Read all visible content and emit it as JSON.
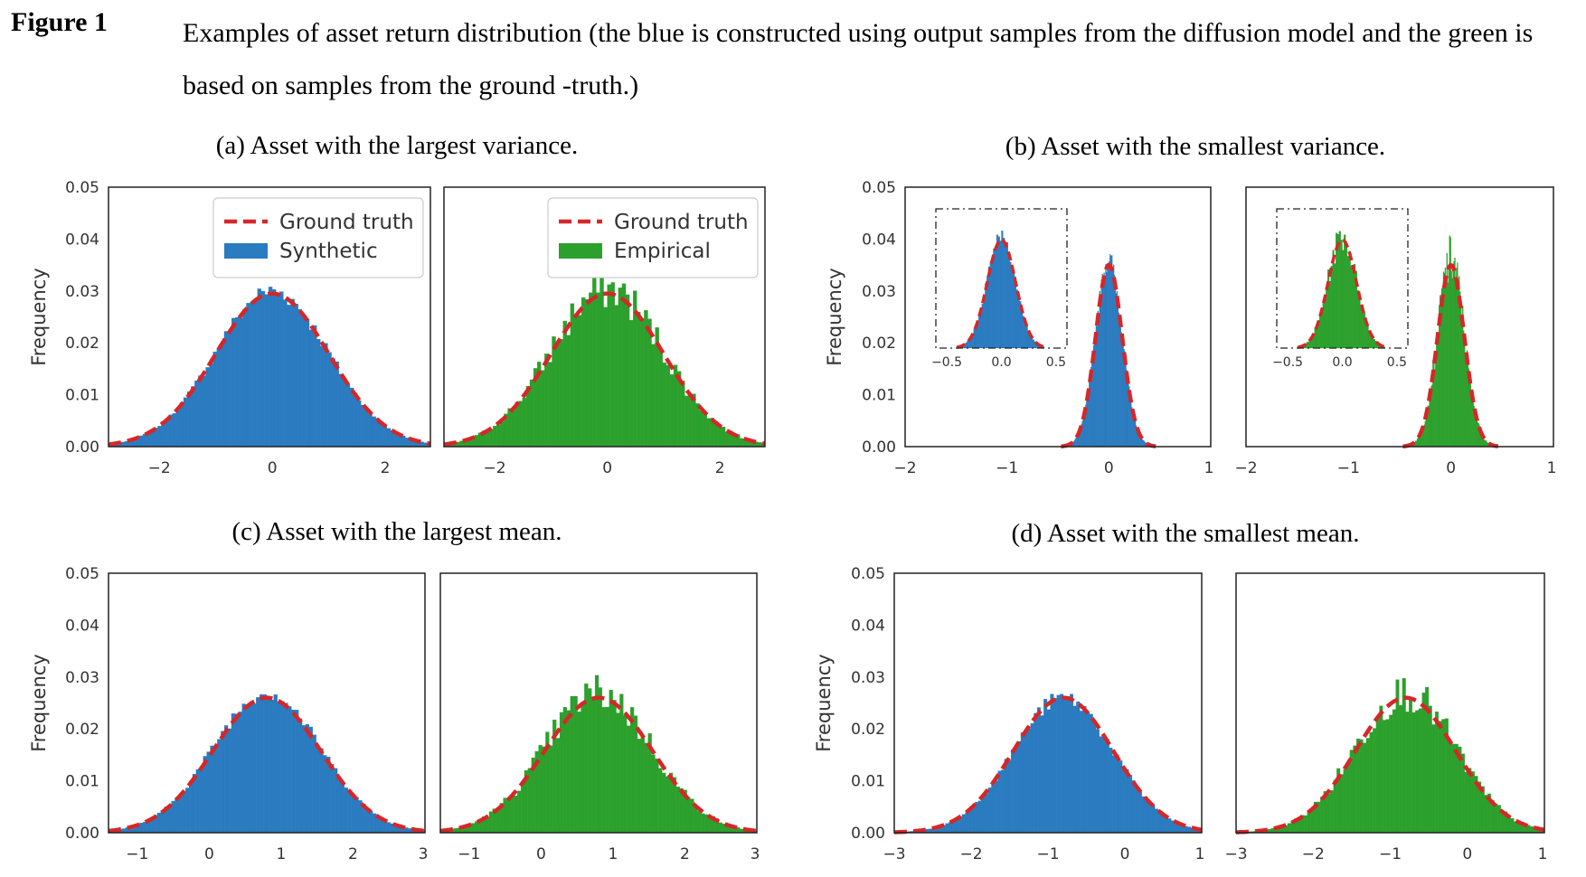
{
  "caption": {
    "label": "Figure 1",
    "text": "Examples of asset return distribution (the blue is constructed using output samples from the diffusion model and the green is based on samples from the ground -truth.)"
  },
  "colors": {
    "synthetic": "#2a7bbf",
    "empirical": "#2ca02c",
    "ground_truth": "#d62728"
  },
  "chart_data": [
    {
      "type": "bar",
      "title": "(a)  Asset with the largest variance.",
      "ylabel": "Frequency",
      "xlim": [
        -2.9,
        2.8
      ],
      "ylim": [
        0,
        0.05
      ],
      "xticks": [
        -2,
        0,
        2
      ],
      "xtick_labels": [
        "−2",
        "0",
        "2"
      ],
      "yticks": [
        0,
        0.01,
        0.02,
        0.03,
        0.04,
        0.05
      ],
      "ytick_labels": [
        "0.00",
        "0.01",
        "0.02",
        "0.03",
        "0.04",
        "0.05"
      ],
      "series": [
        {
          "name": "Ground truth",
          "kind": "line",
          "mean": 0.0,
          "std": 1.0,
          "peak": 0.0295
        },
        {
          "name": "Synthetic",
          "kind": "histogram",
          "mean": 0.0,
          "std": 1.0,
          "peak": 0.03
        }
      ],
      "legend": "top-right"
    },
    {
      "type": "bar",
      "title": "",
      "ylabel": "",
      "xlim": [
        -2.9,
        2.8
      ],
      "ylim": [
        0,
        0.05
      ],
      "xticks": [
        -2,
        0,
        2
      ],
      "xtick_labels": [
        "−2",
        "0",
        "2"
      ],
      "yticks": [],
      "ytick_labels": [],
      "series": [
        {
          "name": "Ground truth",
          "kind": "line",
          "mean": 0.0,
          "std": 1.0,
          "peak": 0.0295
        },
        {
          "name": "Empirical",
          "kind": "histogram",
          "mean": 0.0,
          "std": 1.0,
          "peak": 0.0305
        }
      ],
      "legend": "top-right"
    },
    {
      "type": "bar",
      "title": "(b)  Asset with the smallest variance.",
      "ylabel": "Frequency",
      "xlim": [
        -2,
        1
      ],
      "ylim": [
        0,
        0.05
      ],
      "xticks": [
        -2,
        -1,
        0,
        1
      ],
      "xtick_labels": [
        "−2",
        "−1",
        "0",
        "1"
      ],
      "yticks": [
        0,
        0.01,
        0.02,
        0.03,
        0.04,
        0.05
      ],
      "ytick_labels": [
        "0.00",
        "0.01",
        "0.02",
        "0.03",
        "0.04",
        "0.05"
      ],
      "series": [
        {
          "name": "Ground truth",
          "kind": "line",
          "mean": 0.0,
          "std": 0.13,
          "peak": 0.035
        },
        {
          "name": "Synthetic",
          "kind": "histogram",
          "mean": 0.0,
          "std": 0.13,
          "peak": 0.036
        }
      ],
      "inset": {
        "xlim": [
          -0.6,
          0.6
        ],
        "xticks": [
          -0.5,
          0.0,
          0.5
        ],
        "xtick_labels": [
          "−0.5",
          "0.0",
          "0.5"
        ]
      }
    },
    {
      "type": "bar",
      "title": "",
      "ylabel": "",
      "xlim": [
        -2,
        1
      ],
      "ylim": [
        0,
        0.05
      ],
      "xticks": [
        -2,
        -1,
        0,
        1
      ],
      "xtick_labels": [
        "−2",
        "−1",
        "0",
        "1"
      ],
      "yticks": [],
      "ytick_labels": [],
      "series": [
        {
          "name": "Ground truth",
          "kind": "line",
          "mean": 0.0,
          "std": 0.13,
          "peak": 0.035
        },
        {
          "name": "Empirical",
          "kind": "histogram",
          "mean": 0.0,
          "std": 0.13,
          "peak": 0.036
        }
      ],
      "inset": {
        "xlim": [
          -0.6,
          0.6
        ],
        "xticks": [
          -0.5,
          0.0,
          0.5
        ],
        "xtick_labels": [
          "−0.5",
          "0.0",
          "0.5"
        ]
      }
    },
    {
      "type": "bar",
      "title": "(c)  Asset with the largest mean.",
      "ylabel": "Frequency",
      "xlim": [
        -1.4,
        3.0
      ],
      "ylim": [
        0,
        0.05
      ],
      "xticks": [
        -1,
        0,
        1,
        2,
        3
      ],
      "xtick_labels": [
        "−1",
        "0",
        "1",
        "2",
        "3"
      ],
      "yticks": [
        0,
        0.01,
        0.02,
        0.03,
        0.04,
        0.05
      ],
      "ytick_labels": [
        "0.00",
        "0.01",
        "0.02",
        "0.03",
        "0.04",
        "0.05"
      ],
      "series": [
        {
          "name": "Ground truth",
          "kind": "line",
          "mean": 0.8,
          "std": 0.75,
          "peak": 0.026
        },
        {
          "name": "Synthetic",
          "kind": "histogram",
          "mean": 0.8,
          "std": 0.75,
          "peak": 0.027
        }
      ]
    },
    {
      "type": "bar",
      "title": "",
      "ylabel": "",
      "xlim": [
        -1.4,
        3.0
      ],
      "ylim": [
        0,
        0.05
      ],
      "xticks": [
        -1,
        0,
        1,
        2,
        3
      ],
      "xtick_labels": [
        "−1",
        "0",
        "1",
        "2",
        "3"
      ],
      "yticks": [],
      "ytick_labels": [],
      "series": [
        {
          "name": "Ground truth",
          "kind": "line",
          "mean": 0.8,
          "std": 0.75,
          "peak": 0.026
        },
        {
          "name": "Empirical",
          "kind": "histogram",
          "mean": 0.8,
          "std": 0.75,
          "peak": 0.027
        }
      ]
    },
    {
      "type": "bar",
      "title": "(d)  Asset with the smallest mean.",
      "ylabel": "Frequency",
      "xlim": [
        -3,
        1
      ],
      "ylim": [
        0,
        0.05
      ],
      "xticks": [
        -3,
        -2,
        -1,
        0,
        1
      ],
      "xtick_labels": [
        "−3",
        "−2",
        "−1",
        "0",
        "1"
      ],
      "yticks": [
        0,
        0.01,
        0.02,
        0.03,
        0.04,
        0.05
      ],
      "ytick_labels": [
        "0.00",
        "0.01",
        "0.02",
        "0.03",
        "0.04",
        "0.05"
      ],
      "series": [
        {
          "name": "Ground truth",
          "kind": "line",
          "mean": -0.8,
          "std": 0.65,
          "peak": 0.026
        },
        {
          "name": "Synthetic",
          "kind": "histogram",
          "mean": -0.8,
          "std": 0.65,
          "peak": 0.026
        }
      ]
    },
    {
      "type": "bar",
      "title": "",
      "ylabel": "",
      "xlim": [
        -3,
        1
      ],
      "ylim": [
        0,
        0.05
      ],
      "xticks": [
        -3,
        -2,
        -1,
        0,
        1
      ],
      "xtick_labels": [
        "−3",
        "−2",
        "−1",
        "0",
        "1"
      ],
      "yticks": [],
      "ytick_labels": [],
      "series": [
        {
          "name": "Ground truth",
          "kind": "line",
          "mean": -0.8,
          "std": 0.65,
          "peak": 0.026
        },
        {
          "name": "Empirical",
          "kind": "histogram",
          "mean": -0.8,
          "std": 0.65,
          "peak": 0.027
        }
      ]
    }
  ]
}
